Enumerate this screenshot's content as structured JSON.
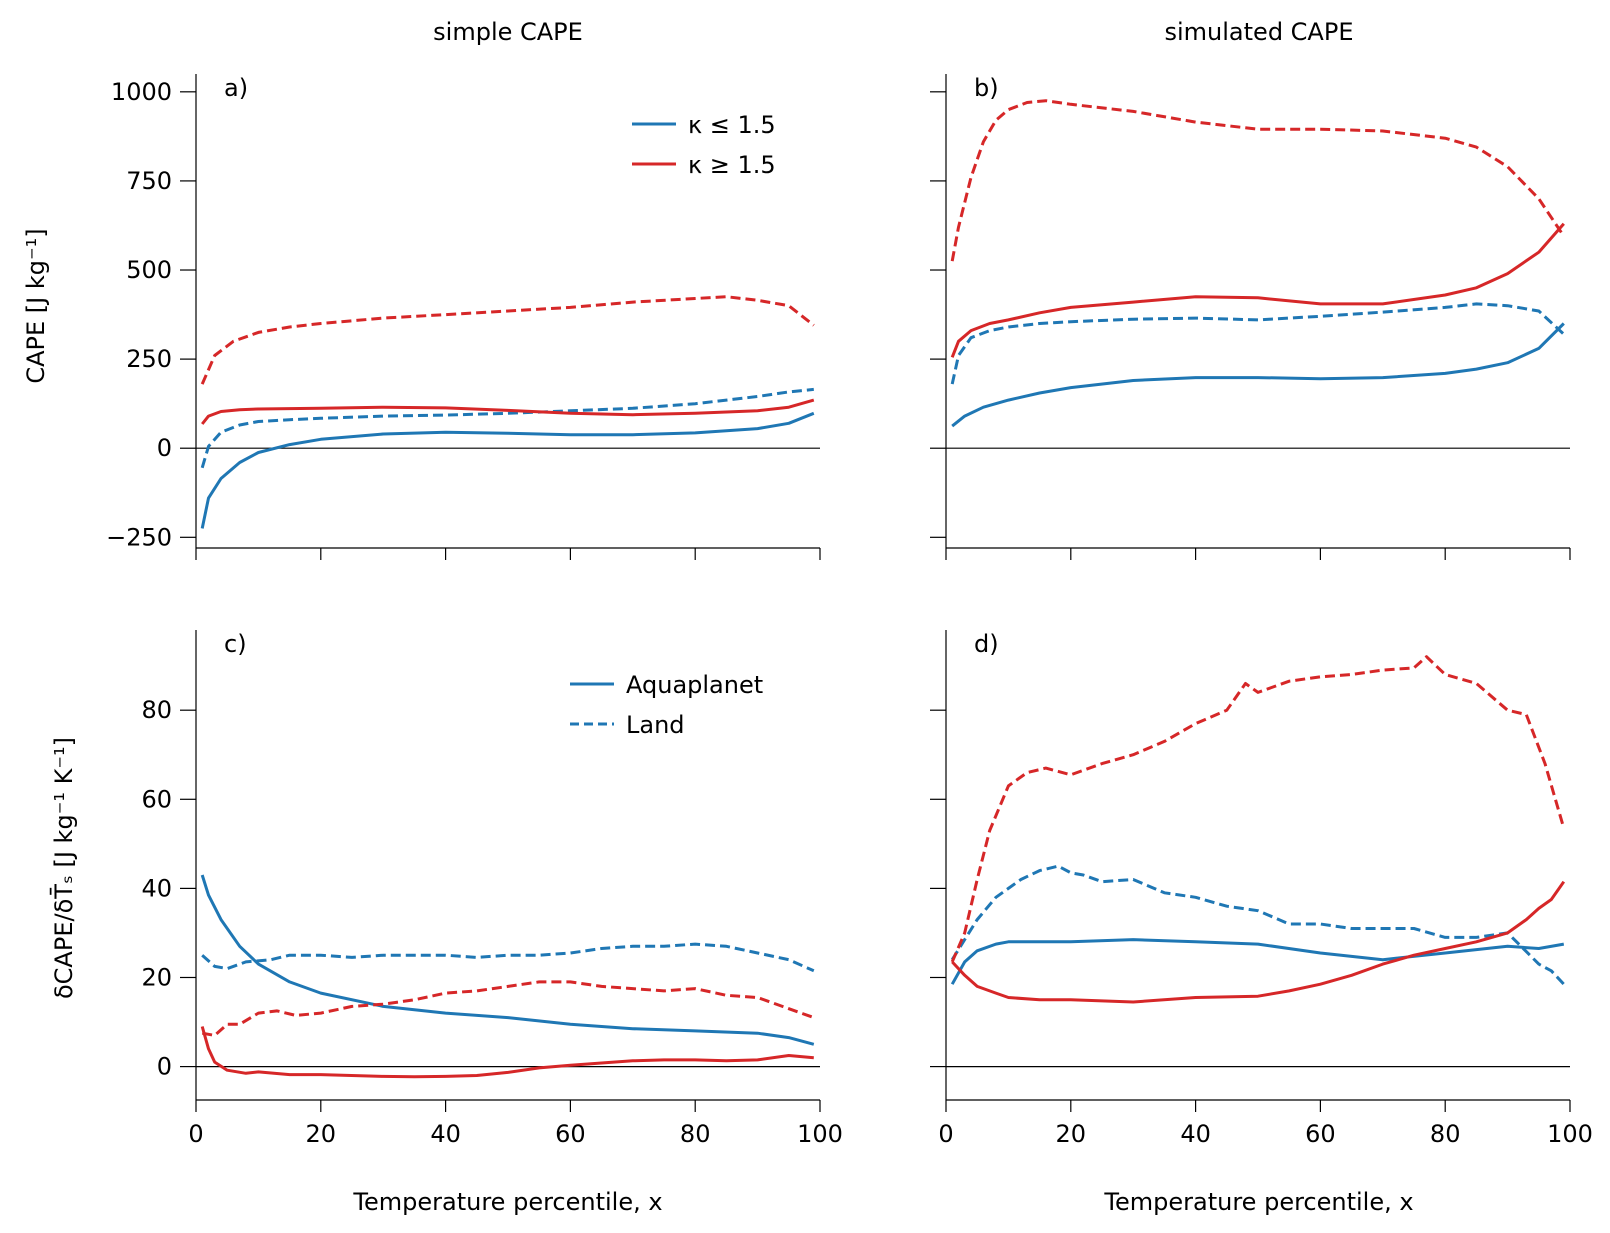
{
  "figure": {
    "col_titles": [
      "simple CAPE",
      "simulated CAPE"
    ],
    "ylabel_top": "CAPE [J kg⁻¹]",
    "ylabel_bottom": "δCAPE/δT̄ₛ [J kg⁻¹ K⁻¹]",
    "xlabel": "Temperature percentile, x",
    "colors": {
      "blue": "#1f77b4",
      "red": "#d62728"
    }
  },
  "legend_kappa": [
    {
      "label": "κ ≤ 1.5",
      "color": "#1f77b4",
      "style": "solid"
    },
    {
      "label": "κ ≥ 1.5",
      "color": "#d62728",
      "style": "solid"
    }
  ],
  "legend_surface": [
    {
      "label": "Aquaplanet",
      "color": "#1f77b4",
      "style": "solid"
    },
    {
      "label": "Land",
      "color": "#1f77b4",
      "style": "dashed"
    }
  ],
  "chart_data": [
    {
      "panel": "a)",
      "type": "line",
      "title": "simple CAPE",
      "xlabel": "",
      "ylabel": "CAPE [J kg⁻¹]",
      "xlim": [
        0,
        100
      ],
      "ylim": [
        -280,
        1050
      ],
      "xticks": [
        0,
        20,
        40,
        60,
        80,
        100
      ],
      "yticks": [
        -250,
        0,
        250,
        500,
        750,
        1000
      ],
      "show_xticklabels": false,
      "show_yticklabels": true,
      "zero_line": true,
      "series": [
        {
          "name": "κ ≤ 1.5 Aquaplanet",
          "color": "blue",
          "style": "solid",
          "x": [
            1,
            2,
            4,
            7,
            10,
            15,
            20,
            30,
            40,
            50,
            60,
            70,
            80,
            90,
            95,
            99
          ],
          "y": [
            -225,
            -140,
            -85,
            -40,
            -12,
            10,
            25,
            40,
            45,
            42,
            38,
            38,
            43,
            55,
            70,
            98
          ]
        },
        {
          "name": "κ ≤ 1.5 Land",
          "color": "blue",
          "style": "dashed",
          "x": [
            1,
            2,
            4,
            7,
            10,
            15,
            20,
            30,
            40,
            50,
            60,
            70,
            80,
            90,
            95,
            99
          ],
          "y": [
            -55,
            5,
            45,
            65,
            75,
            80,
            84,
            90,
            93,
            98,
            105,
            112,
            125,
            145,
            158,
            165
          ]
        },
        {
          "name": "κ ≥ 1.5 Aquaplanet",
          "color": "red",
          "style": "solid",
          "x": [
            1,
            2,
            4,
            7,
            10,
            20,
            30,
            40,
            50,
            60,
            70,
            80,
            90,
            95,
            99
          ],
          "y": [
            68,
            90,
            103,
            108,
            110,
            112,
            115,
            113,
            106,
            98,
            94,
            98,
            105,
            115,
            135
          ]
        },
        {
          "name": "κ ≥ 1.5 Land",
          "color": "red",
          "style": "dashed",
          "x": [
            1,
            3,
            6,
            10,
            15,
            20,
            30,
            40,
            50,
            60,
            70,
            80,
            85,
            90,
            95,
            99
          ],
          "y": [
            180,
            260,
            300,
            325,
            340,
            350,
            365,
            375,
            385,
            395,
            410,
            420,
            425,
            415,
            400,
            345
          ]
        }
      ]
    },
    {
      "panel": "b)",
      "type": "line",
      "title": "simulated CAPE",
      "xlabel": "",
      "ylabel": "",
      "xlim": [
        0,
        100
      ],
      "ylim": [
        -280,
        1050
      ],
      "xticks": [
        0,
        20,
        40,
        60,
        80,
        100
      ],
      "yticks": [
        -250,
        0,
        250,
        500,
        750,
        1000
      ],
      "show_xticklabels": false,
      "show_yticklabels": false,
      "zero_line": true,
      "series": [
        {
          "name": "κ ≤ 1.5 Aquaplanet",
          "color": "blue",
          "style": "solid",
          "x": [
            1,
            3,
            6,
            10,
            15,
            20,
            30,
            40,
            50,
            60,
            70,
            80,
            85,
            90,
            95,
            99
          ],
          "y": [
            62,
            90,
            115,
            135,
            155,
            170,
            190,
            198,
            198,
            195,
            198,
            210,
            222,
            240,
            280,
            350
          ]
        },
        {
          "name": "κ ≤ 1.5 Land",
          "color": "blue",
          "style": "dashed",
          "x": [
            1,
            2,
            4,
            7,
            10,
            15,
            20,
            30,
            40,
            50,
            60,
            70,
            80,
            85,
            90,
            95,
            99
          ],
          "y": [
            180,
            260,
            310,
            330,
            340,
            350,
            355,
            362,
            365,
            360,
            370,
            382,
            395,
            405,
            400,
            385,
            320
          ]
        },
        {
          "name": "κ ≥ 1.5 Aquaplanet",
          "color": "red",
          "style": "solid",
          "x": [
            1,
            2,
            4,
            7,
            10,
            15,
            20,
            30,
            40,
            50,
            60,
            70,
            80,
            85,
            90,
            95,
            99
          ],
          "y": [
            255,
            300,
            330,
            350,
            360,
            380,
            395,
            410,
            425,
            422,
            405,
            405,
            430,
            450,
            490,
            550,
            630
          ]
        },
        {
          "name": "κ ≥ 1.5 Land",
          "color": "red",
          "style": "dashed",
          "x": [
            1,
            2,
            4,
            6,
            8,
            10,
            13,
            16,
            20,
            30,
            40,
            50,
            60,
            70,
            80,
            85,
            90,
            95,
            99
          ],
          "y": [
            525,
            620,
            760,
            860,
            920,
            950,
            970,
            975,
            965,
            945,
            915,
            895,
            895,
            890,
            870,
            845,
            790,
            700,
            595
          ]
        }
      ]
    },
    {
      "panel": "c)",
      "type": "line",
      "title": "",
      "xlabel": "Temperature percentile, x",
      "ylabel": "δCAPE/δT̄ₛ [J kg⁻¹ K⁻¹]",
      "xlim": [
        0,
        100
      ],
      "ylim": [
        -7.5,
        98
      ],
      "xticks": [
        0,
        20,
        40,
        60,
        80,
        100
      ],
      "yticks": [
        0,
        20,
        40,
        60,
        80
      ],
      "show_xticklabels": true,
      "show_yticklabels": true,
      "zero_line": true,
      "series": [
        {
          "name": "Aquaplanet κ ≤ 1.5",
          "color": "blue",
          "style": "solid",
          "x": [
            1,
            2,
            4,
            7,
            10,
            15,
            20,
            30,
            40,
            50,
            60,
            70,
            80,
            90,
            95,
            99
          ],
          "y": [
            43,
            38.5,
            33,
            27,
            23,
            19,
            16.5,
            13.5,
            12,
            11,
            9.5,
            8.5,
            8,
            7.5,
            6.5,
            5
          ]
        },
        {
          "name": "Land κ ≤ 1.5",
          "color": "blue",
          "style": "dashed",
          "x": [
            1,
            3,
            5,
            8,
            12,
            15,
            20,
            25,
            30,
            35,
            40,
            45,
            50,
            55,
            60,
            65,
            70,
            75,
            80,
            85,
            90,
            95,
            99
          ],
          "y": [
            25,
            22.5,
            22,
            23.5,
            24,
            25,
            25,
            24.5,
            25,
            25,
            25,
            24.5,
            25,
            25,
            25.5,
            26.5,
            27,
            27,
            27.5,
            27,
            25.5,
            24,
            21.5
          ]
        },
        {
          "name": "Aquaplanet κ ≥ 1.5",
          "color": "red",
          "style": "solid",
          "x": [
            1,
            2,
            3,
            5,
            8,
            10,
            15,
            20,
            30,
            35,
            40,
            45,
            50,
            55,
            60,
            65,
            70,
            75,
            80,
            85,
            90,
            95,
            99
          ],
          "y": [
            9,
            4,
            1,
            -0.8,
            -1.5,
            -1.2,
            -1.8,
            -1.8,
            -2.2,
            -2.3,
            -2.2,
            -2,
            -1.3,
            -0.3,
            0.3,
            0.8,
            1.3,
            1.5,
            1.5,
            1.3,
            1.5,
            2.5,
            2
          ]
        },
        {
          "name": "Land κ ≥ 1.5",
          "color": "red",
          "style": "dashed",
          "x": [
            1,
            3,
            5,
            7,
            10,
            13,
            16,
            20,
            25,
            30,
            35,
            40,
            45,
            50,
            55,
            60,
            65,
            70,
            75,
            80,
            85,
            90,
            95,
            99
          ],
          "y": [
            7.5,
            7,
            9.5,
            9.5,
            12,
            12.5,
            11.5,
            12,
            13.5,
            14,
            15,
            16.5,
            17,
            18,
            19,
            19,
            18,
            17.5,
            17,
            17.5,
            16,
            15.5,
            13,
            11
          ]
        }
      ]
    },
    {
      "panel": "d)",
      "type": "line",
      "title": "",
      "xlabel": "Temperature percentile, x",
      "ylabel": "",
      "xlim": [
        0,
        100
      ],
      "ylim": [
        -7.5,
        98
      ],
      "xticks": [
        0,
        20,
        40,
        60,
        80,
        100
      ],
      "yticks": [
        0,
        20,
        40,
        60,
        80
      ],
      "show_xticklabels": true,
      "show_yticklabels": false,
      "zero_line": true,
      "series": [
        {
          "name": "Aquaplanet κ ≤ 1.5",
          "color": "blue",
          "style": "solid",
          "x": [
            1,
            3,
            5,
            8,
            10,
            15,
            20,
            30,
            40,
            50,
            60,
            70,
            80,
            90,
            95,
            99
          ],
          "y": [
            18.5,
            23.5,
            26,
            27.5,
            28,
            28,
            28,
            28.5,
            28,
            27.5,
            25.5,
            24,
            25.5,
            27,
            26.5,
            27.5
          ]
        },
        {
          "name": "Land κ ≤ 1.5",
          "color": "blue",
          "style": "dashed",
          "x": [
            1,
            3,
            5,
            8,
            10,
            12,
            15,
            18,
            20,
            22,
            25,
            30,
            35,
            40,
            45,
            50,
            55,
            60,
            65,
            70,
            75,
            80,
            85,
            90,
            95,
            97,
            99
          ],
          "y": [
            24,
            28.5,
            33,
            38,
            40,
            42,
            44,
            45,
            43.5,
            43,
            41.5,
            42,
            39,
            38,
            36,
            35,
            32,
            32,
            31,
            31,
            31,
            29,
            29,
            30,
            23,
            21.5,
            18.5
          ]
        },
        {
          "name": "Aquaplanet κ ≥ 1.5",
          "color": "red",
          "style": "solid",
          "x": [
            1,
            3,
            5,
            8,
            10,
            15,
            20,
            30,
            40,
            50,
            55,
            60,
            65,
            70,
            75,
            80,
            85,
            90,
            93,
            95,
            97,
            99
          ],
          "y": [
            23.5,
            20.5,
            18,
            16.5,
            15.5,
            15,
            15,
            14.5,
            15.5,
            15.8,
            17,
            18.5,
            20.5,
            23,
            25,
            26.5,
            28,
            30,
            33,
            35.5,
            37.5,
            41.5
          ]
        },
        {
          "name": "Land κ ≥ 1.5",
          "color": "red",
          "style": "dashed",
          "x": [
            1,
            3,
            5,
            7,
            10,
            13,
            16,
            20,
            25,
            30,
            35,
            40,
            45,
            48,
            50,
            55,
            60,
            65,
            70,
            75,
            77,
            80,
            85,
            90,
            93,
            96,
            99
          ],
          "y": [
            23.5,
            30,
            42,
            53,
            63,
            66,
            67,
            65.5,
            68,
            70,
            73,
            77,
            80,
            86,
            84,
            86.5,
            87.5,
            88,
            89,
            89.5,
            92,
            88,
            86,
            80,
            79,
            68,
            53.5
          ]
        }
      ]
    }
  ]
}
